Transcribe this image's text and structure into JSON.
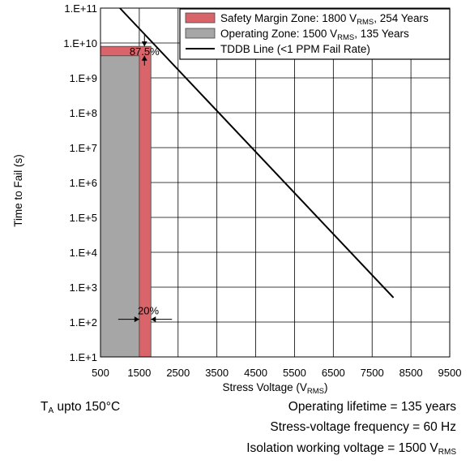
{
  "chart_data": {
    "type": "line",
    "title": "",
    "xlabel": "Stress Voltage (V",
    "xlabel_sub": "RMS",
    "xlabel_end": ")",
    "ylabel": "Time to Fail (s)",
    "x_ticks": [
      "500",
      "1500",
      "2500",
      "3500",
      "4500",
      "5500",
      "6500",
      "7500",
      "8500",
      "9500"
    ],
    "x_tick_values": [
      500,
      1500,
      2500,
      3500,
      4500,
      5500,
      6500,
      7500,
      8500,
      9500
    ],
    "xlim": [
      500,
      9500
    ],
    "y_ticks": [
      "1.E+1",
      "1.E+2",
      "1.E+3",
      "1.E+4",
      "1.E+5",
      "1.E+6",
      "1.E+7",
      "1.E+8",
      "1.E+9",
      "1.E+10",
      "1.E+11"
    ],
    "y_tick_exponents": [
      1,
      2,
      3,
      4,
      5,
      6,
      7,
      8,
      9,
      10,
      11
    ],
    "ylim_exponent": [
      1,
      11
    ],
    "y_scale": "log",
    "grid": true,
    "legend_position": "top-right",
    "legend": [
      {
        "label": "Safety Margin Zone: 1800 V",
        "sub": "RMS",
        "end": ", 254 Years",
        "kind": "box",
        "color": "#d9646a"
      },
      {
        "label": "Operating Zone: 1500 V",
        "sub": "RMS",
        "end": ", 135 Years",
        "kind": "box",
        "color": "#a6a6a6"
      },
      {
        "label": "TDDB Line (<1 PPM Fail Rate)",
        "sub": "",
        "end": "",
        "kind": "line",
        "color": "#000000"
      }
    ],
    "zones": [
      {
        "name": "Safety Margin Zone",
        "x_start": 500,
        "x_end": 1800,
        "y_top": 8000000000.0,
        "color": "#d9646a"
      },
      {
        "name": "Operating Zone",
        "x_start": 500,
        "x_end": 1500,
        "y_top": 4300000000.0,
        "color": "#a6a6a6"
      }
    ],
    "series": [
      {
        "kind": "tddb-line",
        "x": [
          1000,
          8050
        ],
        "y": [
          100000000000.0,
          500
        ],
        "color": "#000000"
      }
    ],
    "annotations": [
      {
        "text": "87.5%",
        "x": 1500,
        "y": 8000000000.0,
        "kind": "vertical-dimension"
      },
      {
        "text": "20%",
        "x": 1650,
        "y": 120,
        "kind": "horizontal-dimension"
      }
    ]
  },
  "notes": {
    "ta_prefix": "T",
    "ta_sub": "A",
    "ta_rest": " upto 150°C",
    "lifetime": "Operating lifetime = 135 years",
    "frequency": "Stress-voltage frequency = 60 Hz",
    "isolation_prefix": "Isolation working voltage = 1500 V",
    "isolation_sub": "RMS"
  }
}
